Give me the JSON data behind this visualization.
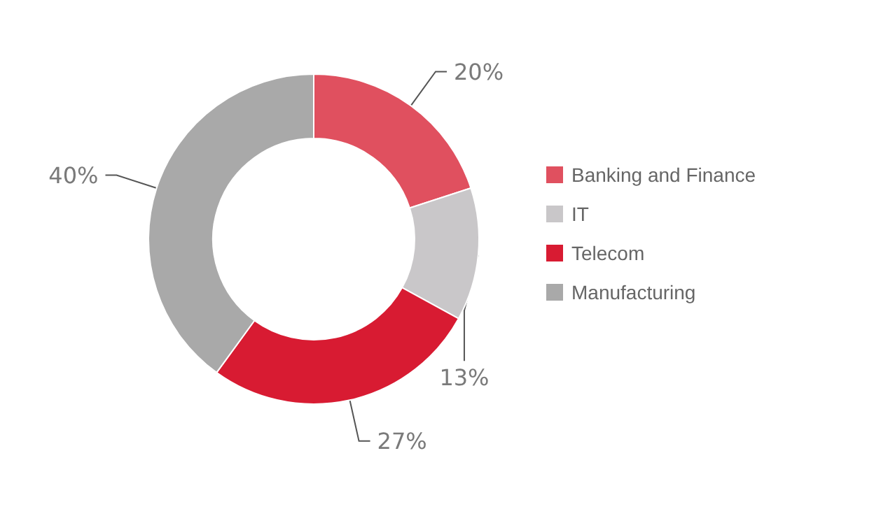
{
  "chart_data": {
    "type": "donut",
    "categories": [
      "Banking and Finance",
      "IT",
      "Telecom",
      "Manufacturing"
    ],
    "values": [
      20,
      13,
      27,
      40
    ],
    "colors": [
      "#e0505f",
      "#c9c7c9",
      "#d81b32",
      "#a9a9a9"
    ],
    "value_labels": [
      "20%",
      "13%",
      "27%",
      "40%"
    ],
    "legend": "right"
  }
}
